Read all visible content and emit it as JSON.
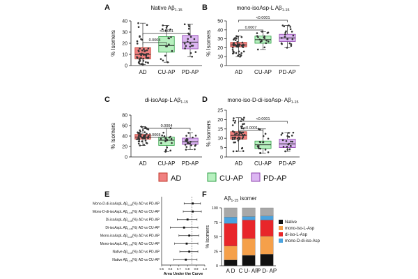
{
  "colors": {
    "ad": "#f08080",
    "ad_edge": "#c0392b",
    "cu": "#b7f0bf",
    "cu_edge": "#2e9e44",
    "pd": "#dcb6f2",
    "pd_edge": "#8e44ad",
    "native": "#111111",
    "monoL": "#f5a04a",
    "diL": "#e8262a",
    "monoD": "#4aa3df",
    "rest": "#a8a8a8"
  },
  "legend": [
    {
      "key": "ad",
      "label": "AD"
    },
    {
      "key": "cu",
      "label": "CU-AP"
    },
    {
      "key": "pd",
      "label": "PD-AP"
    }
  ],
  "chart_data": [
    {
      "panel": "A",
      "type": "box",
      "title": "Native Aβ1-15",
      "ylabel": "% Isomers",
      "ylim": [
        0,
        40
      ],
      "yticks": [
        0,
        10,
        20,
        30,
        40
      ],
      "categories": [
        "AD",
        "CU-AP",
        "PD-AP"
      ],
      "boxes": [
        {
          "min": 1,
          "q1": 6,
          "median": 10,
          "q3": 16,
          "max": 38,
          "n": 50
        },
        {
          "min": 3,
          "q1": 12,
          "median": 18,
          "q3": 26,
          "max": 36,
          "n": 18
        },
        {
          "min": 8,
          "q1": 15,
          "median": 21,
          "q3": 27,
          "max": 37,
          "n": 20
        }
      ],
      "comparisons": [
        {
          "from": 0,
          "to": 1,
          "label": "0.0004"
        },
        {
          "from": 0,
          "to": 2,
          "label": "<0.0001"
        }
      ]
    },
    {
      "panel": "B",
      "type": "box",
      "title": "mono-isoAsp-L Aβ1-15",
      "ylabel": "% Isomers",
      "ylim": [
        0,
        50
      ],
      "yticks": [
        0,
        10,
        20,
        30,
        40,
        50
      ],
      "categories": [
        "AD",
        "CU-AP",
        "PD-AP"
      ],
      "boxes": [
        {
          "min": 10,
          "q1": 21,
          "median": 23,
          "q3": 26,
          "max": 33,
          "n": 50
        },
        {
          "min": 18,
          "q1": 25,
          "median": 29,
          "q3": 33,
          "max": 38,
          "n": 18
        },
        {
          "min": 20,
          "q1": 27,
          "median": 31,
          "q3": 35,
          "max": 45,
          "n": 20
        }
      ],
      "comparisons": [
        {
          "from": 0,
          "to": 1,
          "label": "0.0007"
        },
        {
          "from": 0,
          "to": 2,
          "label": "<0.0001"
        }
      ]
    },
    {
      "panel": "C",
      "type": "box",
      "title": "di-isoAsp-L Aβ1-15",
      "ylabel": "% Isomers",
      "ylim": [
        0,
        80
      ],
      "yticks": [
        0,
        20,
        40,
        60,
        80
      ],
      "categories": [
        "AD",
        "CU-AP",
        "PD-AP"
      ],
      "boxes": [
        {
          "min": 22,
          "q1": 34,
          "median": 38,
          "q3": 43,
          "max": 58,
          "n": 50
        },
        {
          "min": 10,
          "q1": 22,
          "median": 32,
          "q3": 38,
          "max": 55,
          "n": 18
        },
        {
          "min": 14,
          "q1": 24,
          "median": 29,
          "q3": 36,
          "max": 46,
          "n": 20
        }
      ],
      "comparisons": [
        {
          "from": 0,
          "to": 1,
          "label": "0.0008"
        },
        {
          "from": 0,
          "to": 2,
          "label": "0.0004"
        }
      ]
    },
    {
      "panel": "D",
      "type": "box",
      "title": "mono-iso-D-di-isoAsp- Aβ1-15",
      "ylabel": "% Isomers",
      "ylim": [
        0,
        25
      ],
      "yticks": [
        0,
        5,
        10,
        15,
        20,
        25
      ],
      "categories": [
        "AD",
        "CU-AP",
        "PD-AP"
      ],
      "boxes": [
        {
          "min": 3,
          "q1": 9.5,
          "median": 11.5,
          "q3": 13.5,
          "max": 21,
          "n": 50
        },
        {
          "min": 2,
          "q1": 4.5,
          "median": 6.5,
          "q3": 8.5,
          "max": 15,
          "n": 18
        },
        {
          "min": 3,
          "q1": 5,
          "median": 7,
          "q3": 9.5,
          "max": 13,
          "n": 20
        }
      ],
      "comparisons": [
        {
          "from": 0,
          "to": 1,
          "label": "<0.0001"
        },
        {
          "from": 0,
          "to": 2,
          "label": "<0.0001"
        }
      ]
    },
    {
      "panel": "E",
      "type": "forest",
      "xlabel": "Area Under the Curve",
      "xlim": [
        0.5,
        1.0
      ],
      "xticks": [
        "0.5",
        "0.6",
        "0.7",
        "0.8",
        "0.9",
        "1.0"
      ],
      "refline": 0.85,
      "rows": [
        {
          "label": "Mono-D-di-isoAspL Aβ1-15(%) AD vs PD-AP",
          "auc": 0.86,
          "lo": 0.76,
          "hi": 0.95
        },
        {
          "label": "Mono-D-di-isoAspL Aβ1-15(%) AD vs CU-AP",
          "auc": 0.86,
          "lo": 0.75,
          "hi": 0.96
        },
        {
          "label": "Di-isoAspL Aβ1-15(%) AD vs PD-AP",
          "auc": 0.8,
          "lo": 0.68,
          "hi": 0.91
        },
        {
          "label": "Di-isoAspL Aβ1-15(%) AD vs CU-AP",
          "auc": 0.76,
          "lo": 0.6,
          "hi": 0.92
        },
        {
          "label": "Mono-isoAspL Aβ1-15(%) AD vs PD-AP",
          "auc": 0.82,
          "lo": 0.7,
          "hi": 0.93
        },
        {
          "label": "Mono-isoAspL Aβ1-15(%) AD vs CU-AP",
          "auc": 0.79,
          "lo": 0.65,
          "hi": 0.92
        },
        {
          "label": "Native Aβ1-15(%) AD vs PD-AP",
          "auc": 0.82,
          "lo": 0.71,
          "hi": 0.92
        },
        {
          "label": "Native Aβ1-15(%) AD vs CU-AP",
          "auc": 0.78,
          "lo": 0.64,
          "hi": 0.91
        }
      ]
    },
    {
      "panel": "F",
      "type": "stacked-bar",
      "title": "Aβ1-15 isomer",
      "ylabel": "% Isomers",
      "ylim": [
        0,
        100
      ],
      "yticks": [
        0,
        25,
        50,
        75,
        100
      ],
      "categories": [
        "A D",
        "C U- AP",
        "P D- AP"
      ],
      "series": [
        {
          "name": "Native",
          "key": "native",
          "values": [
            10,
            18,
            20
          ]
        },
        {
          "name": "mono-iso-L-Asp",
          "key": "monoL",
          "values": [
            24,
            29,
            31
          ]
        },
        {
          "name": "di-iso-L-Asp",
          "key": "diL",
          "values": [
            39,
            32,
            28
          ]
        },
        {
          "name": "mono-D-di-iso-Asp",
          "key": "monoD",
          "values": [
            11,
            6,
            7
          ]
        }
      ]
    }
  ]
}
